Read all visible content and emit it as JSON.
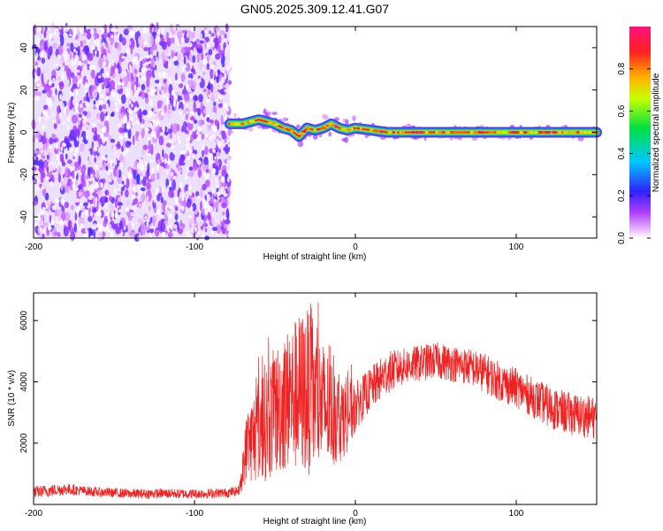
{
  "title": "GN05.2025.309.12.41.G07",
  "chart_data": [
    {
      "type": "heatmap",
      "xlabel": "Height of straight line (km)",
      "ylabel": "Frequency (Hz)",
      "xlim": [
        -200,
        150
      ],
      "ylim": [
        -50,
        50
      ],
      "xticks": [
        -200,
        -100,
        0,
        100
      ],
      "yticks": [
        -40,
        -20,
        0,
        20,
        40
      ],
      "colorbar": {
        "label": "Normalized spectral amplitude",
        "range": [
          0,
          1
        ],
        "ticks": [
          "0.0",
          "0.2",
          "0.4",
          "0.6",
          "0.8"
        ],
        "colormap": "rainbow (magenta-blue-cyan-green-yellow-red)"
      },
      "regions": [
        {
          "name": "noise",
          "x_range": [
            -200,
            -78
          ],
          "freq_range": [
            -50,
            50
          ],
          "amplitude": [
            0.0,
            0.2
          ]
        },
        {
          "name": "signal",
          "x_range": [
            -78,
            150
          ],
          "freq_approx": 0,
          "amplitude": [
            0.6,
            1.0
          ]
        }
      ],
      "signal_track": {
        "x": [
          -78,
          -70,
          -60,
          -50,
          -45,
          -40,
          -35,
          -30,
          -25,
          -20,
          -15,
          -10,
          -5,
          0,
          10,
          20,
          40,
          60,
          80,
          100,
          120,
          150
        ],
        "freq": [
          4,
          4,
          6,
          4,
          2,
          1,
          -2,
          2,
          1,
          2,
          4,
          2,
          1,
          2,
          1,
          0,
          0,
          0,
          0,
          0,
          0,
          0
        ]
      },
      "grid": false
    },
    {
      "type": "line",
      "xlabel": "Height of straight line (km)",
      "ylabel": "SNR (10 * v/v)",
      "xlim": [
        -200,
        150
      ],
      "ylim": [
        0,
        6900
      ],
      "xticks": [
        -200,
        -100,
        0,
        100
      ],
      "yticks": [
        2000,
        4000,
        6000
      ],
      "color": "#ee2222",
      "series": [
        {
          "x": [
            -200,
            -190,
            -180,
            -170,
            -160,
            -150,
            -140,
            -130,
            -120,
            -110,
            -100,
            -90,
            -80,
            -72,
            -68,
            -60,
            -50,
            -45,
            -40,
            -35,
            -30,
            -25,
            -20,
            -15,
            -10,
            -5,
            0,
            10,
            20,
            30,
            40,
            50,
            60,
            70,
            80,
            90,
            100,
            110,
            120,
            130,
            140,
            150
          ],
          "y": [
            400,
            450,
            500,
            450,
            400,
            380,
            350,
            350,
            360,
            350,
            350,
            360,
            380,
            450,
            1800,
            2500,
            3000,
            3300,
            3500,
            3600,
            3700,
            3400,
            3200,
            3000,
            2800,
            2900,
            3200,
            3800,
            4300,
            4500,
            4600,
            4700,
            4600,
            4500,
            4300,
            4000,
            3800,
            3500,
            3200,
            3000,
            2900,
            2800
          ],
          "noise_amplitude": [
            250,
            250,
            250,
            200,
            200,
            200,
            200,
            200,
            200,
            200,
            200,
            200,
            200,
            200,
            900,
            1500,
            1800,
            1900,
            2000,
            2200,
            2300,
            2000,
            1800,
            1500,
            1200,
            1000,
            800,
            700,
            700,
            600,
            600,
            600,
            600,
            600,
            650,
            650,
            650,
            650,
            700,
            700,
            700,
            700
          ]
        }
      ],
      "grid": false
    }
  ]
}
